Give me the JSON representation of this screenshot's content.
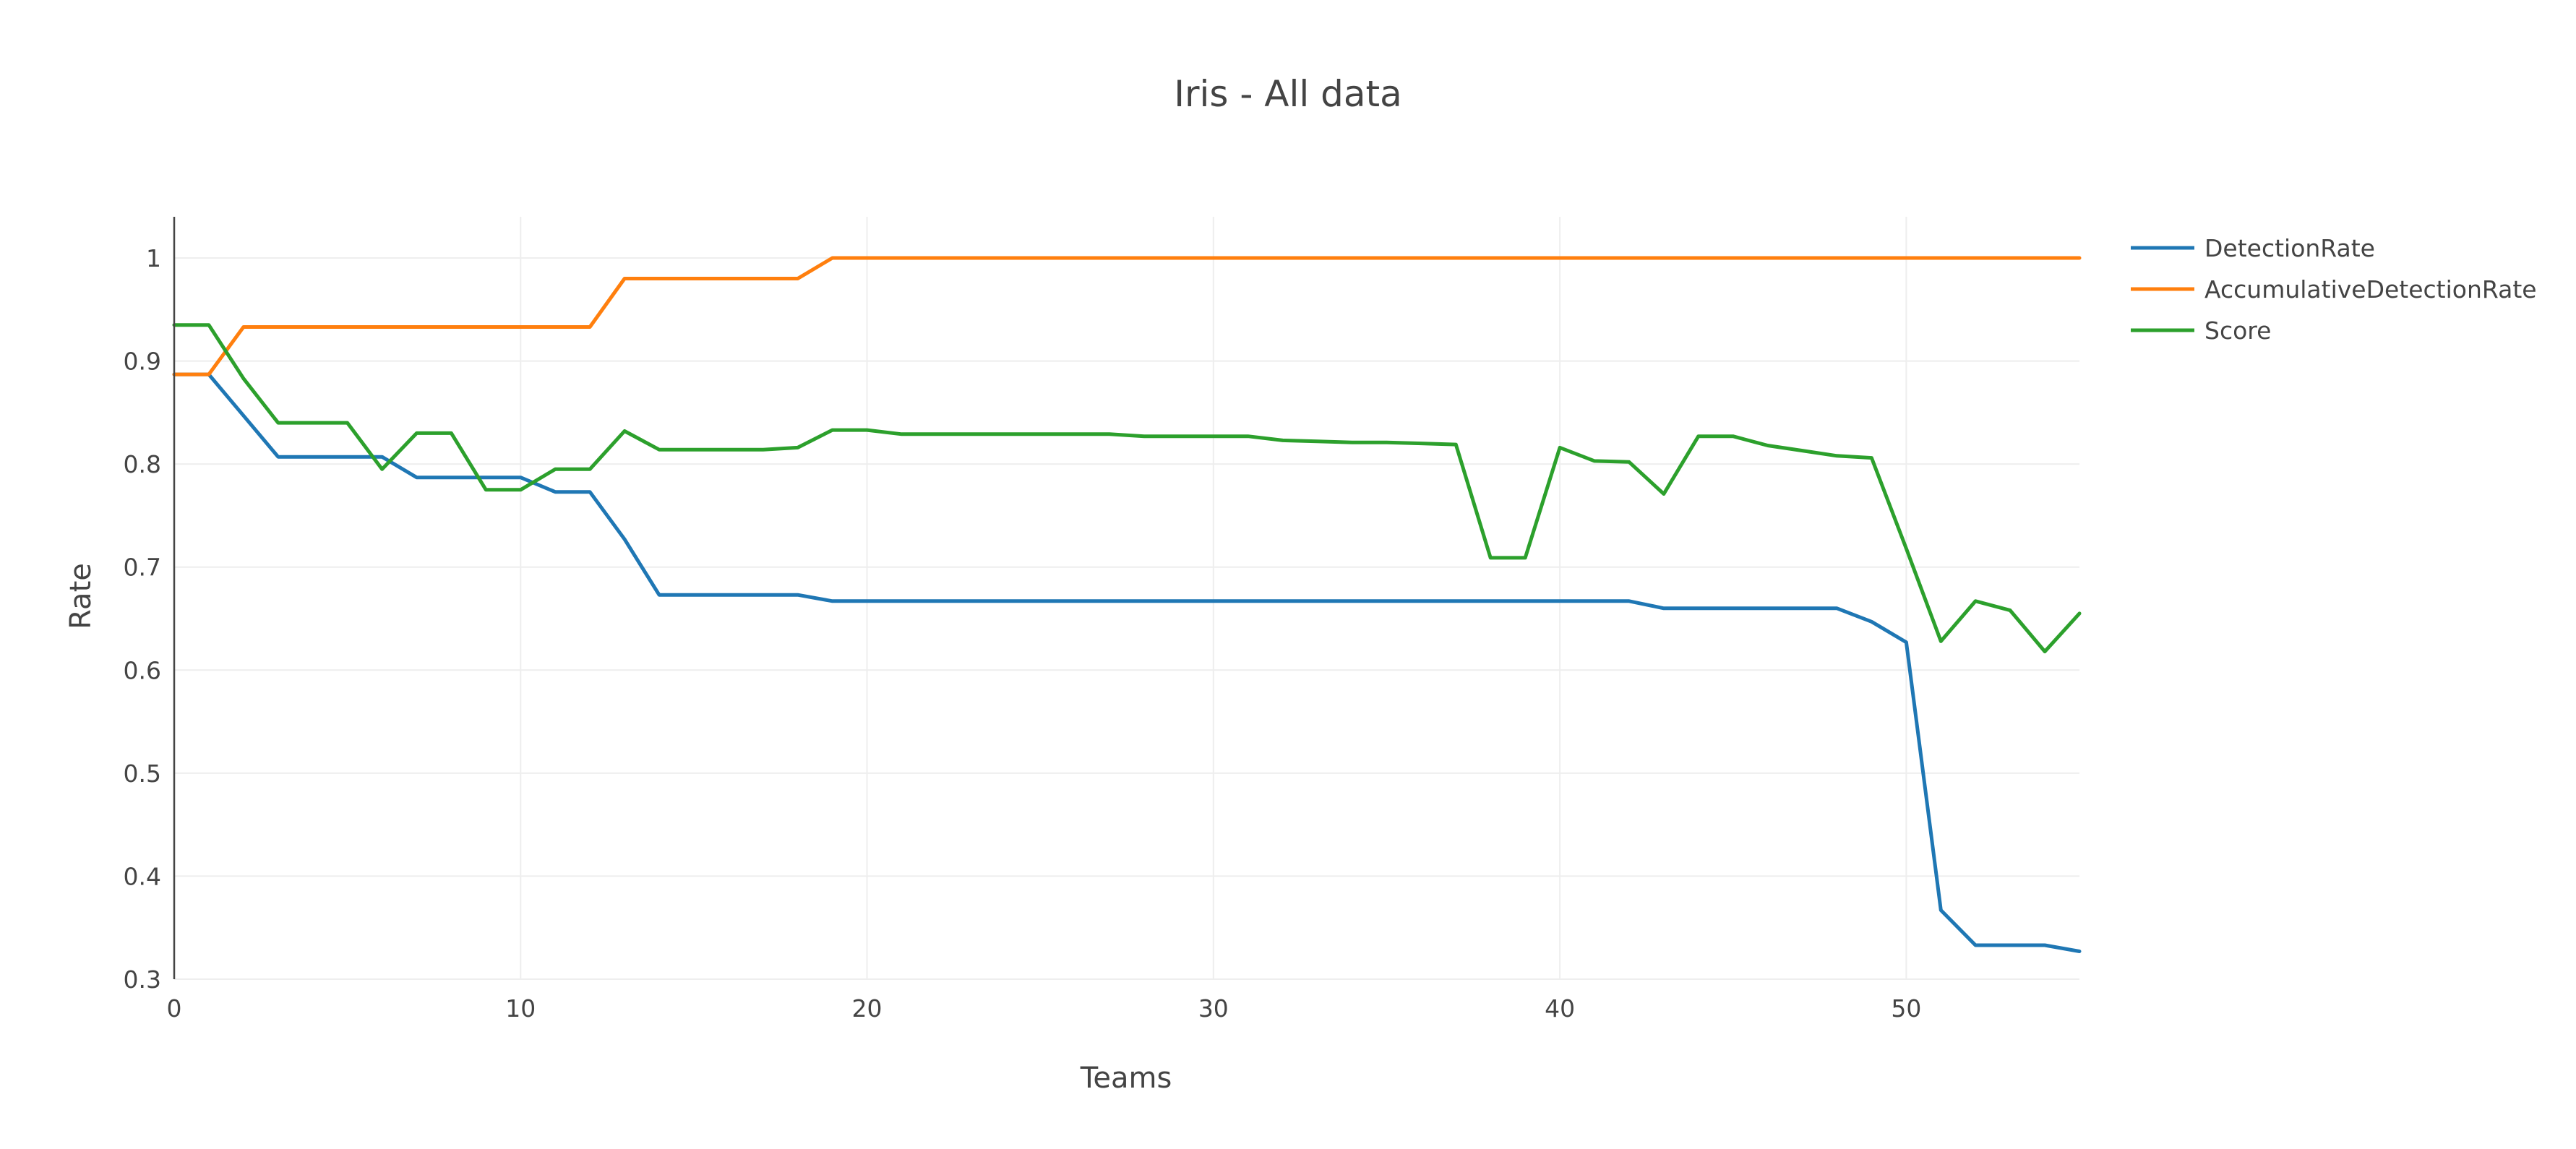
{
  "chart_data": {
    "type": "line",
    "title": "Iris - All data",
    "xlabel": "Teams",
    "ylabel": "Rate",
    "xlim": [
      0,
      55
    ],
    "ylim": [
      0.3,
      1.04
    ],
    "xticks": [
      0,
      10,
      20,
      30,
      40,
      50
    ],
    "xtick_labels": [
      "0",
      "10",
      "20",
      "30",
      "40",
      "50"
    ],
    "yticks": [
      0.3,
      0.4,
      0.5,
      0.6,
      0.7,
      0.8,
      0.9,
      1
    ],
    "ytick_labels": [
      "0.3",
      "0.4",
      "0.5",
      "0.6",
      "0.7",
      "0.8",
      "0.9",
      "1"
    ],
    "grid": true,
    "legend_position": "top-right",
    "x": [
      0,
      1,
      2,
      3,
      4,
      5,
      6,
      7,
      8,
      9,
      10,
      11,
      12,
      13,
      14,
      15,
      16,
      17,
      18,
      19,
      20,
      21,
      22,
      23,
      24,
      25,
      26,
      27,
      28,
      29,
      30,
      31,
      32,
      33,
      34,
      35,
      36,
      37,
      38,
      39,
      40,
      41,
      42,
      43,
      44,
      45,
      46,
      47,
      48,
      49,
      50,
      51,
      52,
      53,
      54,
      55
    ],
    "series": [
      {
        "name": "DetectionRate",
        "color": "#1f77b4",
        "values": [
          0.887,
          0.887,
          0.847,
          0.807,
          0.807,
          0.807,
          0.807,
          0.787,
          0.787,
          0.787,
          0.787,
          0.773,
          0.773,
          0.727,
          0.673,
          0.673,
          0.673,
          0.673,
          0.673,
          0.667,
          0.667,
          0.667,
          0.667,
          0.667,
          0.667,
          0.667,
          0.667,
          0.667,
          0.667,
          0.667,
          0.667,
          0.667,
          0.667,
          0.667,
          0.667,
          0.667,
          0.667,
          0.667,
          0.667,
          0.667,
          0.667,
          0.667,
          0.667,
          0.66,
          0.66,
          0.66,
          0.66,
          0.66,
          0.66,
          0.647,
          0.627,
          0.367,
          0.333,
          0.333,
          0.333,
          0.327
        ]
      },
      {
        "name": "AccumulativeDetectionRate",
        "color": "#ff7f0e",
        "values": [
          0.887,
          0.887,
          0.933,
          0.933,
          0.933,
          0.933,
          0.933,
          0.933,
          0.933,
          0.933,
          0.933,
          0.933,
          0.933,
          0.98,
          0.98,
          0.98,
          0.98,
          0.98,
          0.98,
          1,
          1,
          1,
          1,
          1,
          1,
          1,
          1,
          1,
          1,
          1,
          1,
          1,
          1,
          1,
          1,
          1,
          1,
          1,
          1,
          1,
          1,
          1,
          1,
          1,
          1,
          1,
          1,
          1,
          1,
          1,
          1,
          1,
          1,
          1,
          1,
          1
        ]
      },
      {
        "name": "Score",
        "color": "#2ca02c",
        "values": [
          0.935,
          0.935,
          0.883,
          0.84,
          0.84,
          0.84,
          0.795,
          0.83,
          0.83,
          0.775,
          0.775,
          0.795,
          0.795,
          0.832,
          0.814,
          0.814,
          0.814,
          0.814,
          0.816,
          0.833,
          0.833,
          0.829,
          0.829,
          0.829,
          0.829,
          0.829,
          0.829,
          0.829,
          0.827,
          0.827,
          0.827,
          0.827,
          0.823,
          0.822,
          0.821,
          0.821,
          0.82,
          0.819,
          0.709,
          0.709,
          0.816,
          0.803,
          0.802,
          0.771,
          0.827,
          0.827,
          0.818,
          0.813,
          0.808,
          0.806,
          0.718,
          0.628,
          0.667,
          0.658,
          0.618,
          0.655
        ]
      }
    ]
  }
}
